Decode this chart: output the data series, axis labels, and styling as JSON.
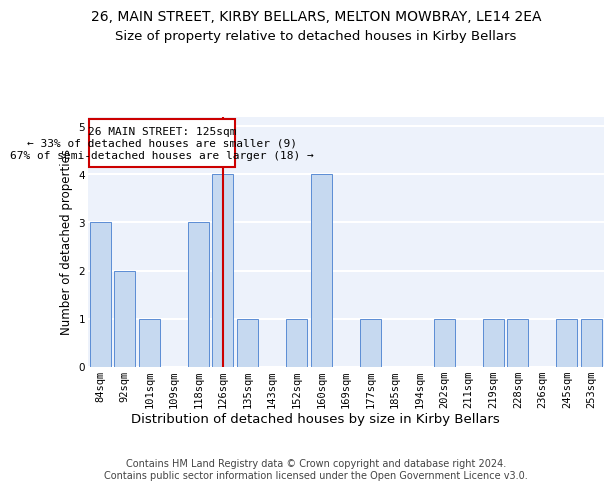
{
  "title": "26, MAIN STREET, KIRBY BELLARS, MELTON MOWBRAY, LE14 2EA",
  "subtitle": "Size of property relative to detached houses in Kirby Bellars",
  "xlabel": "Distribution of detached houses by size in Kirby Bellars",
  "ylabel": "Number of detached properties",
  "categories": [
    "84sqm",
    "92sqm",
    "101sqm",
    "109sqm",
    "118sqm",
    "126sqm",
    "135sqm",
    "143sqm",
    "152sqm",
    "160sqm",
    "169sqm",
    "177sqm",
    "185sqm",
    "194sqm",
    "202sqm",
    "211sqm",
    "219sqm",
    "228sqm",
    "236sqm",
    "245sqm",
    "253sqm"
  ],
  "values": [
    3,
    2,
    1,
    0,
    3,
    4,
    1,
    0,
    1,
    4,
    0,
    1,
    0,
    0,
    1,
    0,
    1,
    1,
    0,
    1,
    1
  ],
  "bar_color": "#c6d9f0",
  "bar_edge_color": "#5b8dd4",
  "highlight_index": 5,
  "highlight_line_color": "#cc0000",
  "annotation_box_color": "#cc0000",
  "annotation_text": "26 MAIN STREET: 125sqm\n← 33% of detached houses are smaller (9)\n67% of semi-detached houses are larger (18) →",
  "ylim": [
    0,
    5.2
  ],
  "yticks": [
    0,
    1,
    2,
    3,
    4,
    5
  ],
  "footer": "Contains HM Land Registry data © Crown copyright and database right 2024.\nContains public sector information licensed under the Open Government Licence v3.0.",
  "background_color": "#edf2fb",
  "grid_color": "#ffffff",
  "title_fontsize": 10,
  "subtitle_fontsize": 9.5,
  "xlabel_fontsize": 9.5,
  "ylabel_fontsize": 8.5,
  "tick_fontsize": 7.5,
  "annotation_fontsize": 8,
  "footer_fontsize": 7
}
